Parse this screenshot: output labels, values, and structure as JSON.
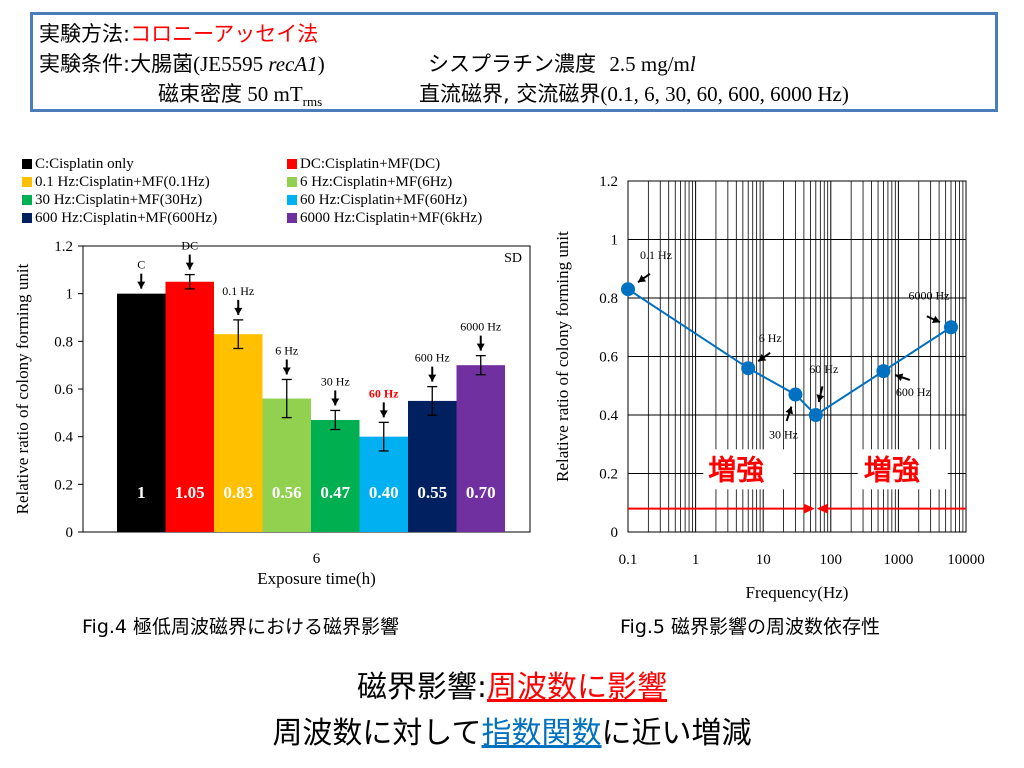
{
  "header": {
    "line1_label": "実験方法:",
    "line1_value": "コロニーアッセイ法",
    "line2_label": "実験条件:",
    "line2_value_a": "大腸菌",
    "line2_value_b": "(JE5595 ",
    "line2_value_c": "recA1",
    "line2_value_d": ")",
    "line2_conc_label": "シスプラチン濃度",
    "line2_conc_value": "2.5 mg/m",
    "line2_conc_unit_italic": "l",
    "line3_label": "磁束密度",
    "line3_value": " 50 mT",
    "line3_sub": "rms",
    "line3_field": "直流磁界,",
    "line3_field2": "交流磁界",
    "line3_freqs": "(0.1, 6, 30, 60, 600, 6000  Hz)"
  },
  "legend": [
    {
      "label": "C:Cisplatin only",
      "color": "#000000"
    },
    {
      "label": "DC:Cisplatin+MF(DC)",
      "color": "#ff0000"
    },
    {
      "label": "0.1 Hz:Cisplatin+MF(0.1Hz)",
      "color": "#ffc000"
    },
    {
      "label": "6 Hz:Cisplatin+MF(6Hz)",
      "color": "#92d050"
    },
    {
      "label": "30 Hz:Cisplatin+MF(30Hz)",
      "color": "#00b050"
    },
    {
      "label": "60 Hz:Cisplatin+MF(60Hz)",
      "color": "#00b0f0"
    },
    {
      "label": "600 Hz:Cisplatin+MF(600Hz)",
      "color": "#002060"
    },
    {
      "label": "6000 Hz:Cisplatin+MF(6kHz)",
      "color": "#7030a0"
    }
  ],
  "chart_data": [
    {
      "type": "bar",
      "ylabel": "Relative ratio of colony forming unit",
      "xlabel": "Exposure time(h)",
      "x_tick": "6",
      "ylim": [
        0,
        1.2
      ],
      "yticks": [
        "0",
        "0.2",
        "0.4",
        "0.6",
        "0.8",
        "1",
        "1.2"
      ],
      "sd_label": "SD",
      "categories": [
        "C",
        "DC",
        "0.1 Hz",
        "6 Hz",
        "30 Hz",
        "60 Hz",
        "600 Hz",
        "6000 Hz"
      ],
      "values": [
        1.0,
        1.05,
        0.83,
        0.56,
        0.47,
        0.4,
        0.55,
        0.7
      ],
      "value_labels": [
        "1",
        "1.05",
        "0.83",
        "0.56",
        "0.47",
        "0.40",
        "0.55",
        "0.70"
      ],
      "errors": [
        0.0,
        0.03,
        0.06,
        0.08,
        0.04,
        0.06,
        0.06,
        0.04
      ],
      "colors": [
        "#000000",
        "#ff0000",
        "#ffc000",
        "#92d050",
        "#00b050",
        "#00b0f0",
        "#002060",
        "#7030a0"
      ],
      "highlight_label_color": "#ff0000",
      "highlight_index": 5
    },
    {
      "type": "line",
      "xscale": "log",
      "ylabel": "Relative ratio of colony forming unit",
      "xlabel": "Frequency(Hz)",
      "xlim": [
        0.1,
        10000
      ],
      "ylim": [
        0,
        1.2
      ],
      "xticks": [
        "0.1",
        "1",
        "10",
        "100",
        "1000",
        "10000"
      ],
      "yticks": [
        "0",
        "0.2",
        "0.4",
        "0.6",
        "0.8",
        "1",
        "1.2"
      ],
      "x": [
        0.1,
        6,
        30,
        60,
        600,
        6000
      ],
      "y": [
        0.83,
        0.56,
        0.47,
        0.4,
        0.55,
        0.7
      ],
      "point_labels": [
        "0.1 Hz",
        "6 Hz",
        "30 Hz",
        "60 Hz",
        "600 Hz",
        "6000 Hz"
      ],
      "line_color": "#0070c0",
      "annotation_left": "増強",
      "annotation_right": "増強",
      "annotation_color": "#ff0000"
    }
  ],
  "captions": {
    "fig4": "Fig.4 極低周波磁界における磁界影響",
    "fig5": "Fig.5 磁界影響の周波数依存性"
  },
  "conclusion": {
    "line1_prefix": "磁界影響:",
    "line1_highlight": "周波数に影響",
    "line2_prefix": "周波数に対して",
    "line2_highlight": "指数関数",
    "line2_suffix": "に近い増減"
  }
}
